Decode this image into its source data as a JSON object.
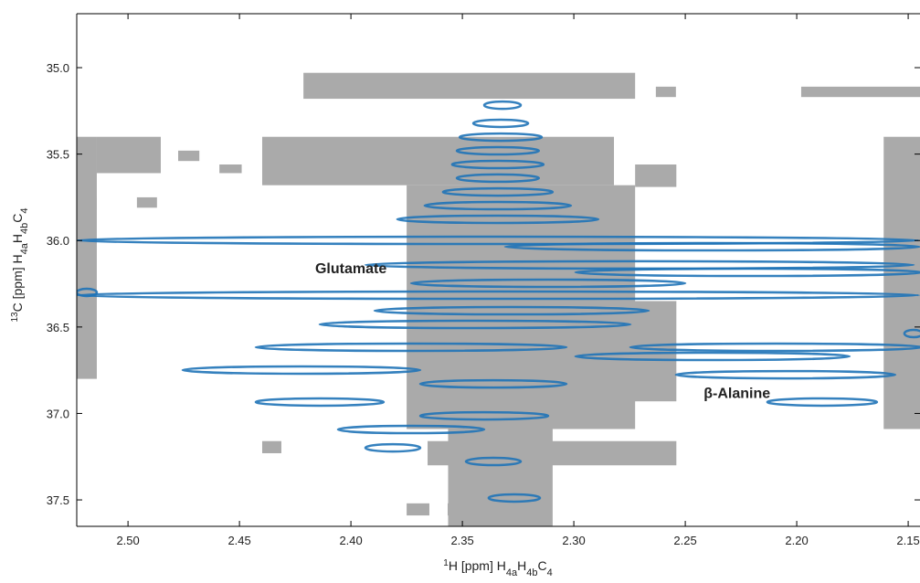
{
  "chart_data": {
    "type": "nmr2d",
    "xlabel": [
      "1",
      "H [ppm] H",
      "4a",
      "H",
      "4b",
      "C",
      "4"
    ],
    "ylabel": [
      "13",
      "C [ppm] H",
      "4a",
      "H",
      "4b",
      "C",
      "4"
    ],
    "xlim": [
      2.523,
      2.1447
    ],
    "ylim": [
      34.688,
      37.653
    ],
    "xticks": [
      {
        "value": 2.5,
        "label": "2.50"
      },
      2.45,
      {
        "value": 2.4,
        "label": "2.40"
      },
      2.35,
      {
        "value": 2.3,
        "label": "2.30"
      },
      2.25,
      {
        "value": 2.2,
        "label": "2.20"
      },
      2.15
    ],
    "yticks": [
      {
        "value": 35,
        "label": "35.0"
      },
      35.5,
      {
        "value": 36,
        "label": "36.0"
      },
      36.5,
      {
        "value": 37,
        "label": "37.0"
      },
      37.5
    ],
    "annotations": [
      {
        "text": "Glutamate",
        "x": 2.4,
        "y": 36.19
      },
      {
        "text": "β-Alanine",
        "x": 2.2268,
        "y": 36.91
      }
    ],
    "region_color": "#aaaaaa",
    "regions": [
      [
        2.4213,
        2.2725,
        35.03,
        35.18
      ],
      [
        2.2632,
        2.2542,
        35.11,
        35.17
      ],
      [
        2.198,
        2.1447,
        35.11,
        35.17
      ],
      [
        2.4398,
        2.282,
        35.4,
        35.68
      ],
      [
        2.375,
        2.2725,
        35.68,
        37.09
      ],
      [
        2.3564,
        2.3095,
        35.82,
        37.65
      ],
      [
        2.2725,
        2.254,
        35.56,
        35.69
      ],
      [
        2.161,
        2.1447,
        35.4,
        37.09
      ],
      [
        2.523,
        2.514,
        35.4,
        36.8
      ],
      [
        2.514,
        2.4853,
        35.4,
        35.61
      ],
      [
        2.3656,
        2.254,
        37.16,
        37.3
      ],
      [
        2.4398,
        2.4312,
        37.16,
        37.23
      ],
      [
        2.375,
        2.3648,
        37.52,
        37.59
      ],
      [
        2.3566,
        2.3463,
        37.52,
        37.59
      ],
      [
        2.459,
        2.449,
        35.56,
        35.61
      ],
      [
        2.4775,
        2.468,
        35.48,
        35.54
      ],
      [
        2.496,
        2.487,
        35.75,
        35.81
      ],
      [
        2.523,
        2.514,
        35.75,
        35.82
      ],
      [
        2.2745,
        2.254,
        36.35,
        36.93
      ]
    ],
    "peak_color": "#1f73b7",
    "peaks": {
      "x": [
        2.3341,
        2.3341,
        2.2378,
        2.3341,
        2.3341,
        2.3341,
        2.3341,
        2.3341,
        2.3341,
        2.3328,
        2.3328,
        2.332,
        2.2705,
        2.2214,
        2.3115,
        2.3279,
        2.3443,
        2.373,
        2.2091,
        2.2378,
        2.4222,
        2.205,
        2.3361,
        2.414,
        2.1886,
        2.3402,
        2.373,
        2.3812,
        2.3361,
        2.3267,
        2.1476,
        2.5185
      ],
      "y": [
        35.999,
        36.316,
        36.036,
        35.877,
        35.798,
        35.719,
        35.639,
        35.56,
        35.481,
        35.402,
        35.322,
        35.217,
        36.141,
        36.184,
        36.247,
        36.406,
        36.485,
        36.617,
        36.617,
        36.67,
        36.749,
        36.776,
        36.829,
        36.934,
        36.934,
        37.014,
        37.093,
        37.199,
        37.278,
        37.489,
        36.538,
        36.3
      ],
      "xwidth": [
        0.1889,
        0.1889,
        0.093,
        0.0451,
        0.0328,
        0.0246,
        0.0184,
        0.0205,
        0.0184,
        0.0184,
        0.0123,
        0.0082,
        0.123,
        0.0779,
        0.0615,
        0.0615,
        0.0697,
        0.0697,
        0.0656,
        0.0615,
        0.0533,
        0.0492,
        0.0328,
        0.0287,
        0.0246,
        0.0287,
        0.0328,
        0.0123,
        0.0123,
        0.0115,
        0.0041,
        0.0045
      ]
    }
  }
}
